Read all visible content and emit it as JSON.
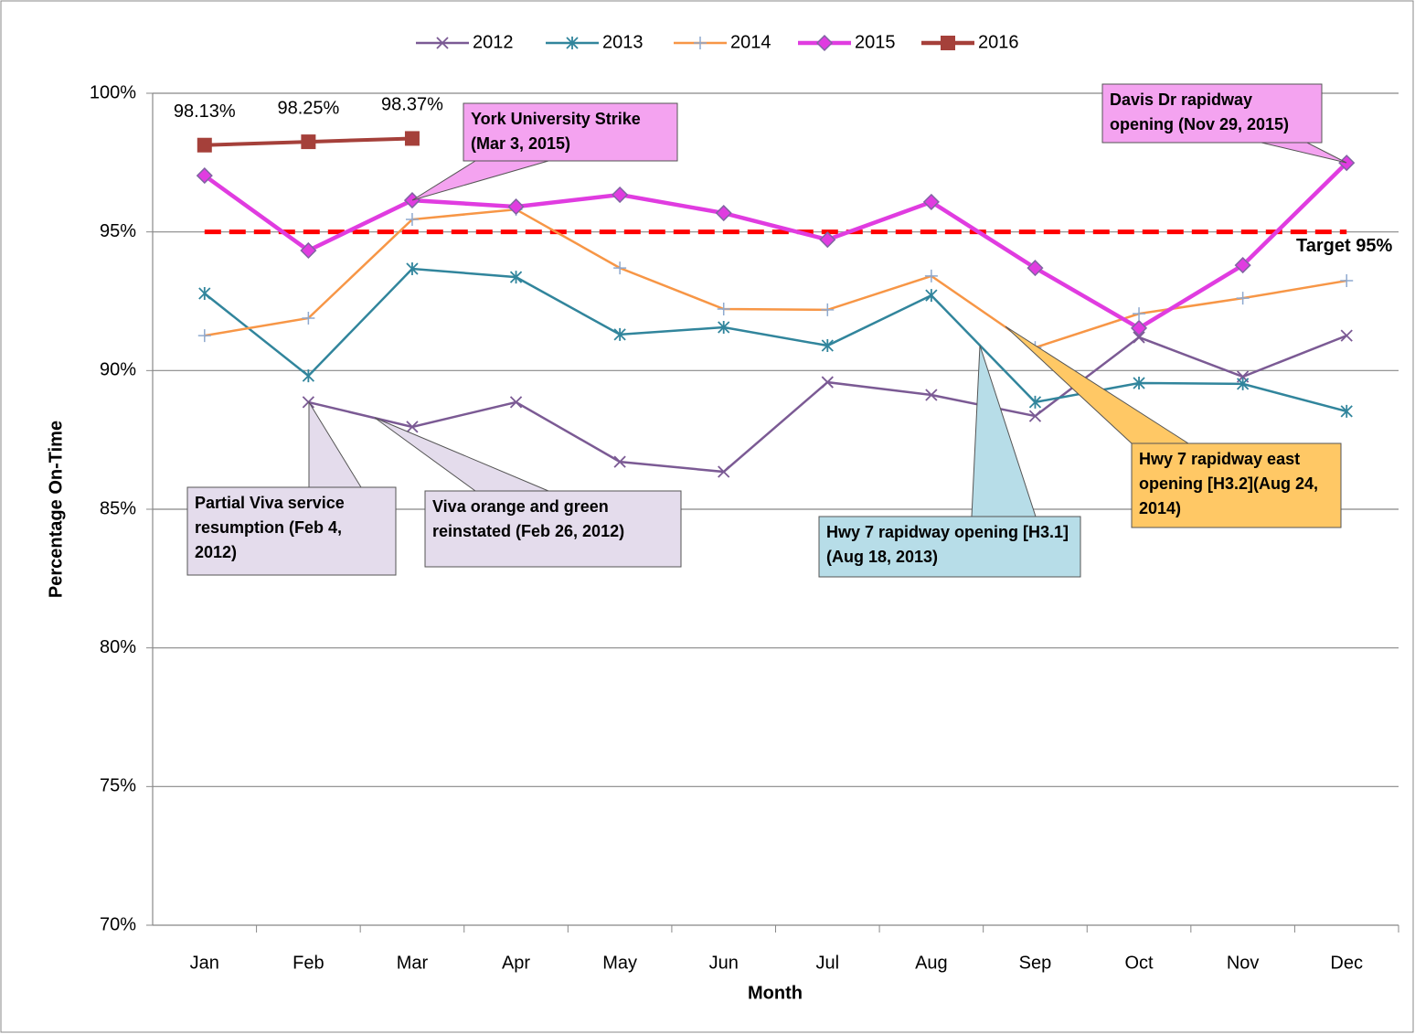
{
  "chart_data": {
    "type": "line",
    "x_label": "Month",
    "y_label": "Percentage On-Time",
    "categories": [
      "Jan",
      "Feb",
      "Mar",
      "Apr",
      "May",
      "Jun",
      "Jul",
      "Aug",
      "Sep",
      "Oct",
      "Nov",
      "Dec"
    ],
    "ylim": [
      70,
      100
    ],
    "yticks": [
      {
        "value": 70,
        "label": "70%"
      },
      {
        "value": 75,
        "label": "75%"
      },
      {
        "value": 80,
        "label": "80%"
      },
      {
        "value": 85,
        "label": "85%"
      },
      {
        "value": 90,
        "label": "90%"
      },
      {
        "value": 95,
        "label": "95%"
      },
      {
        "value": 100,
        "label": "100%"
      }
    ],
    "grid": true,
    "legend": "top",
    "series": [
      {
        "name": "2012",
        "color": "#7b5a94",
        "marker": "x",
        "marker_color": "#7b5a94",
        "values": [
          null,
          88.86,
          87.97,
          88.86,
          86.71,
          86.35,
          89.58,
          89.12,
          88.36,
          91.2,
          89.78,
          91.26
        ]
      },
      {
        "name": "2013",
        "color": "#31859c",
        "marker": "asterisk",
        "marker_color": "#31859c",
        "values": [
          92.78,
          89.81,
          93.67,
          93.37,
          91.3,
          91.56,
          90.9,
          92.71,
          88.86,
          89.55,
          89.52,
          88.53
        ]
      },
      {
        "name": "2014",
        "color": "#f79646",
        "marker": "plus",
        "marker_color": "#8ea9cf",
        "values": [
          91.26,
          91.89,
          95.45,
          95.81,
          93.7,
          92.22,
          92.19,
          93.41,
          90.83,
          92.05,
          92.61,
          93.24
        ]
      },
      {
        "name": "2015",
        "color": "#e03ce0",
        "marker": "diamond",
        "marker_color": "#8064a2",
        "values": [
          97.03,
          94.33,
          96.14,
          95.91,
          96.34,
          95.68,
          94.72,
          96.08,
          93.7,
          91.53,
          93.8,
          97.49
        ]
      },
      {
        "name": "2016",
        "color": "#a5403a",
        "marker": "square",
        "marker_color": "#a5403a",
        "values": [
          98.13,
          98.25,
          98.37,
          null,
          null,
          null,
          null,
          null,
          null,
          null,
          null,
          null
        ],
        "value_labels": [
          "98.13%",
          "98.25%",
          "98.37%",
          null,
          null,
          null,
          null,
          null,
          null,
          null,
          null,
          null
        ]
      }
    ],
    "target": {
      "value": 95,
      "label": "Target 95%",
      "color": "#ff0000"
    },
    "annotations": [
      {
        "text": "York University Strike (Mar 3, 2015)",
        "color": "#f4a3f0"
      },
      {
        "text": "Davis Dr rapidway opening (Nov 29, 2015)",
        "color": "#f4a3f0"
      },
      {
        "text": "Partial Viva service resumption (Feb 4, 2012)",
        "color": "#e4dcec"
      },
      {
        "text": "Viva orange and green reinstated (Feb 26, 2012)",
        "color": "#e4dcec"
      },
      {
        "text": "Hwy 7 rapidway opening [H3.1](Aug 18, 2013)",
        "color": "#b7dde8"
      },
      {
        "text": "Hwy 7 rapidway east opening [H3.2](Aug 24, 2014)",
        "color": "#ffc865"
      }
    ]
  }
}
